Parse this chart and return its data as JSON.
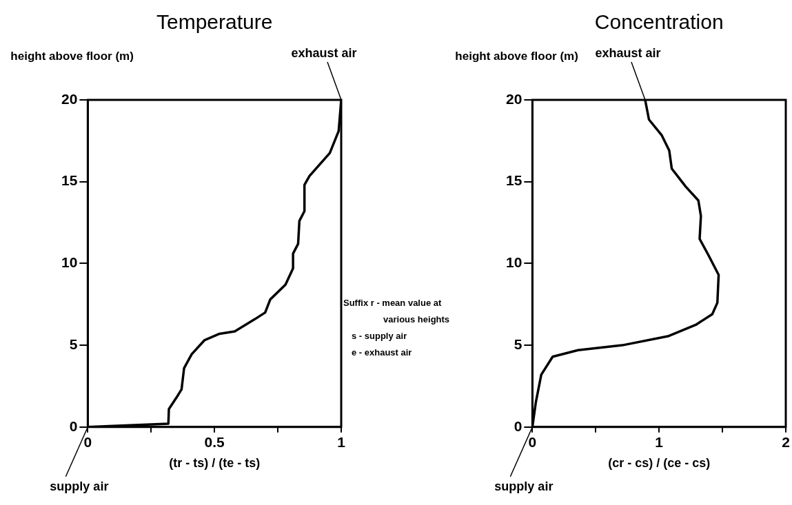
{
  "chart_data": [
    {
      "type": "line",
      "title": "Temperature",
      "ylabel": "height above floor (m)",
      "xlabel": "(tr - ts) / (te - ts)",
      "xlim": [
        0,
        1
      ],
      "xticks": [
        0,
        {
          "value": 0.25,
          "label": null
        },
        0.5,
        {
          "value": 0.75,
          "label": null
        },
        1
      ],
      "ylim": [
        0,
        20
      ],
      "yticks": [
        0,
        5,
        10,
        15,
        20
      ],
      "marker": "none",
      "line_style": "solid",
      "annotations": [
        {
          "text": "exhaust air",
          "x": 1,
          "y": 20
        },
        {
          "text": "supply air",
          "x": 0,
          "y": 0
        }
      ],
      "series": [
        {
          "color": "#000000",
          "x": [
            0,
            0.15,
            0.318,
            0.32,
            0.35,
            0.37,
            0.38,
            0.41,
            0.46,
            0.52,
            0.58,
            0.66,
            0.7,
            0.72,
            0.78,
            0.81,
            0.81,
            0.83,
            0.835,
            0.855,
            0.855,
            0.875,
            0.955,
            0.99,
            1
          ],
          "values": [
            0,
            0.1,
            0.2,
            1.1,
            1.8,
            2.3,
            3.6,
            4.45,
            5.3,
            5.7,
            5.85,
            6.6,
            7,
            7.8,
            8.7,
            9.7,
            10.6,
            11.2,
            12.6,
            13.2,
            14.8,
            15.35,
            16.75,
            18.1,
            20
          ]
        }
      ]
    },
    {
      "type": "line",
      "title": "Concentration",
      "ylabel": "height above floor (m)",
      "xlabel": "(cr - cs) / (ce - cs)",
      "xlim": [
        0,
        2
      ],
      "xticks": [
        0,
        {
          "value": 0.5,
          "label": null
        },
        1,
        {
          "value": 1.5,
          "label": null
        },
        2
      ],
      "ylim": [
        0,
        20
      ],
      "yticks": [
        0,
        5,
        10,
        15,
        20
      ],
      "marker": "none",
      "line_style": "solid",
      "annotations": [
        {
          "text": "exhaust air",
          "x": 0.89,
          "y": 20
        },
        {
          "text": "supply air",
          "x": 0,
          "y": 0
        },
        "Suffix r - mean value at various heights",
        "s - supply air",
        "e - exhaust air"
      ],
      "series": [
        {
          "color": "#000000",
          "x": [
            0,
            0.027,
            0.07,
            0.16,
            0.36,
            0.71,
            1.07,
            1.29,
            1.42,
            1.46,
            1.47,
            1.39,
            1.32,
            1.33,
            1.31,
            1.21,
            1.1,
            1.08,
            1.02,
            0.92,
            0.89
          ],
          "values": [
            0,
            1.5,
            3.2,
            4.3,
            4.7,
            5,
            5.55,
            6.25,
            6.9,
            7.6,
            9.3,
            10.5,
            11.5,
            12.9,
            13.85,
            14.7,
            15.8,
            16.9,
            17.85,
            18.8,
            20
          ]
        }
      ]
    }
  ]
}
